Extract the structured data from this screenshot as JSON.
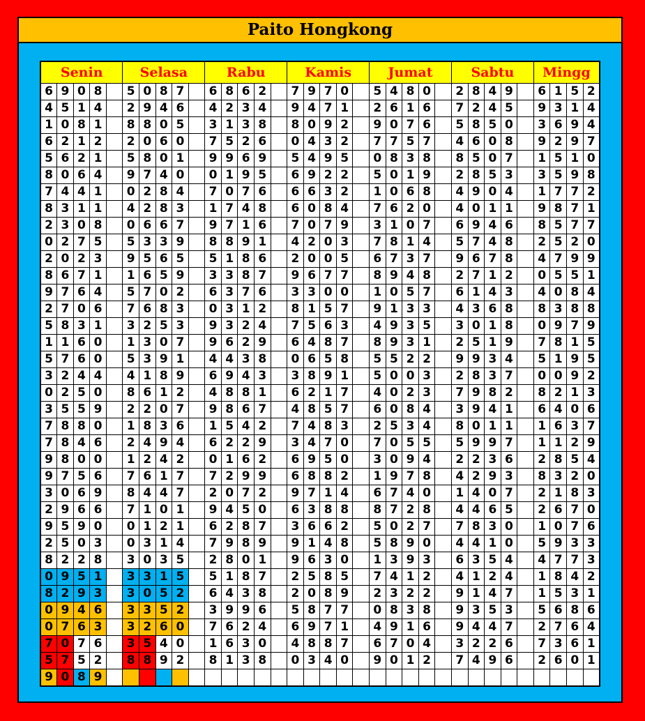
{
  "title": "Paito Hongkong",
  "days": [
    "Senin",
    "Selasa",
    "Rabu",
    "Kamis",
    "Jumat",
    "Sabtu",
    "Mingg"
  ],
  "colors": {
    "blue": "#00B0F0",
    "orange": "#FFC000",
    "red": "#FF0000",
    "header": "#FFFF00"
  },
  "rows": [
    [
      "6908",
      "5087",
      "6862",
      "7970",
      "5480",
      "2849",
      "6152"
    ],
    [
      "4514",
      "2946",
      "4234",
      "9471",
      "2616",
      "7245",
      "9314"
    ],
    [
      "1081",
      "8805",
      "3138",
      "8092",
      "9076",
      "5850",
      "3694"
    ],
    [
      "6212",
      "2060",
      "7526",
      "0432",
      "7757",
      "4608",
      "9297"
    ],
    [
      "5621",
      "5801",
      "9969",
      "5495",
      "0838",
      "8507",
      "1510"
    ],
    [
      "8064",
      "9740",
      "0195",
      "6922",
      "5019",
      "2853",
      "3598"
    ],
    [
      "7441",
      "0284",
      "7076",
      "6632",
      "1068",
      "4904",
      "1772"
    ],
    [
      "8311",
      "4283",
      "1748",
      "6084",
      "7620",
      "4011",
      "9871"
    ],
    [
      "2308",
      "0667",
      "9716",
      "7079",
      "3107",
      "6946",
      "8577"
    ],
    [
      "0275",
      "5339",
      "8891",
      "4203",
      "7814",
      "5748",
      "2520"
    ],
    [
      "2023",
      "9565",
      "5186",
      "2005",
      "6737",
      "9678",
      "4799"
    ],
    [
      "8671",
      "1659",
      "3387",
      "9677",
      "8948",
      "2712",
      "0551"
    ],
    [
      "9764",
      "5702",
      "6376",
      "3300",
      "1057",
      "6143",
      "4084"
    ],
    [
      "2706",
      "7683",
      "0312",
      "8157",
      "9133",
      "4368",
      "8388"
    ],
    [
      "5831",
      "3253",
      "9324",
      "7563",
      "4935",
      "3018",
      "0979"
    ],
    [
      "1160",
      "1307",
      "9629",
      "6487",
      "8931",
      "2519",
      "7815"
    ],
    [
      "5760",
      "5391",
      "4438",
      "0658",
      "5522",
      "9934",
      "5195"
    ],
    [
      "3244",
      "4189",
      "6943",
      "3891",
      "5003",
      "2837",
      "0092"
    ],
    [
      "0250",
      "8612",
      "4881",
      "6217",
      "4023",
      "7982",
      "8213"
    ],
    [
      "3559",
      "2207",
      "9867",
      "4857",
      "6084",
      "3941",
      "6406"
    ],
    [
      "7880",
      "1836",
      "1542",
      "7483",
      "2534",
      "8011",
      "1637"
    ],
    [
      "7846",
      "2494",
      "6229",
      "3470",
      "7055",
      "5997",
      "1129"
    ],
    [
      "9800",
      "1242",
      "0162",
      "6950",
      "3094",
      "2236",
      "2854"
    ],
    [
      "9756",
      "7617",
      "7299",
      "6882",
      "1978",
      "4293",
      "8320"
    ],
    [
      "3069",
      "8447",
      "2072",
      "9714",
      "6740",
      "1407",
      "2183"
    ],
    [
      "2966",
      "7101",
      "9450",
      "6388",
      "8728",
      "4465",
      "2670"
    ],
    [
      "9590",
      "0121",
      "6287",
      "3662",
      "5027",
      "7830",
      "1076"
    ],
    [
      "2503",
      "0314",
      "7989",
      "9148",
      "5890",
      "4410",
      "5933"
    ],
    [
      "8228",
      "3035",
      "2801",
      "9630",
      "1393",
      "6354",
      "4773"
    ],
    [
      "0951",
      "3315",
      "5187",
      "2585",
      "7412",
      "4124",
      "1842"
    ],
    [
      "8293",
      "3052",
      "6438",
      "2089",
      "2322",
      "9147",
      "1531"
    ],
    [
      "0946",
      "3352",
      "3996",
      "5877",
      "0838",
      "9353",
      "5686"
    ],
    [
      "0763",
      "3260",
      "7624",
      "6971",
      "4916",
      "9447",
      "2764"
    ],
    [
      "7076",
      "3540",
      "1630",
      "4887",
      "6704",
      "3226",
      "7361"
    ],
    [
      "5752",
      "8892",
      "8138",
      "0340",
      "9012",
      "7496",
      "2601"
    ],
    [
      "9089",
      "",
      "",
      "",
      "",
      "",
      ""
    ]
  ],
  "highlights": [
    {
      "row": 29,
      "day": 0,
      "digits": [
        "blue",
        "blue",
        "blue",
        "blue"
      ]
    },
    {
      "row": 29,
      "day": 1,
      "digits": [
        "blue",
        "blue",
        "blue",
        "blue"
      ]
    },
    {
      "row": 30,
      "day": 0,
      "digits": [
        "blue",
        "blue",
        "blue",
        "blue"
      ]
    },
    {
      "row": 30,
      "day": 1,
      "digits": [
        "blue",
        "blue",
        "blue",
        "blue"
      ]
    },
    {
      "row": 31,
      "day": 0,
      "digits": [
        "orange",
        "orange",
        "orange",
        "orange"
      ]
    },
    {
      "row": 31,
      "day": 1,
      "digits": [
        "orange",
        "orange",
        "orange",
        "orange"
      ]
    },
    {
      "row": 32,
      "day": 0,
      "digits": [
        "orange",
        "orange",
        "orange",
        "orange"
      ]
    },
    {
      "row": 32,
      "day": 1,
      "digits": [
        "orange",
        "orange",
        "orange",
        "orange"
      ]
    },
    {
      "row": 33,
      "day": 0,
      "digits": [
        "red",
        "red",
        null,
        null
      ]
    },
    {
      "row": 33,
      "day": 1,
      "digits": [
        "red",
        "red",
        null,
        null
      ]
    },
    {
      "row": 34,
      "day": 0,
      "digits": [
        "red",
        "red",
        null,
        null
      ]
    },
    {
      "row": 34,
      "day": 1,
      "digits": [
        "red",
        "red",
        null,
        null
      ]
    },
    {
      "row": 35,
      "day": 0,
      "digits": [
        "orange",
        "red",
        "blue",
        "orange"
      ]
    },
    {
      "row": 35,
      "day": 1,
      "digits": [
        "orange",
        "red",
        "blue",
        "orange"
      ]
    }
  ]
}
